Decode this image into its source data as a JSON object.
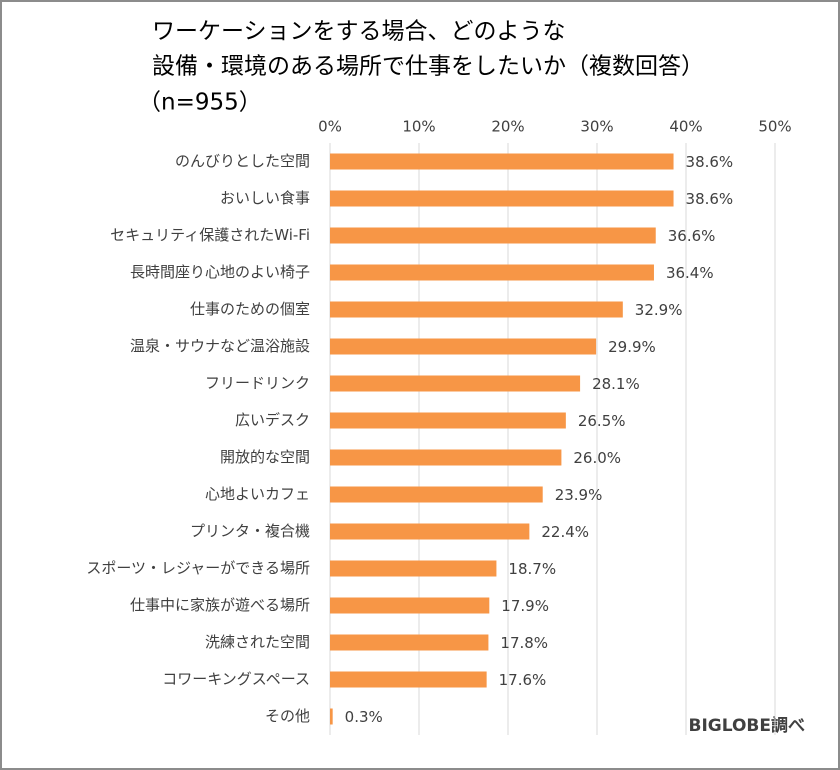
{
  "chart_data": {
    "type": "bar",
    "orientation": "horizontal",
    "title": [
      "ワーケーションをする場合、どのような",
      "設備・環境のある場所で仕事をしたいか（複数回答）"
    ],
    "subtitle": "（n=955）",
    "source": "BIGLOBE調べ",
    "categories": [
      "のんびりとした空間",
      "おいしい食事",
      "セキュリティ保護されたWi-Fi",
      "長時間座り心地のよい椅子",
      "仕事のための個室",
      "温泉・サウナなど温浴施設",
      "フリードリンク",
      "広いデスク",
      "開放的な空間",
      "心地よいカフェ",
      "プリンタ・複合機",
      "スポーツ・レジャーができる場所",
      "仕事中に家族が遊べる場所",
      "洗練された空間",
      "コワーキングスペース",
      "その他"
    ],
    "values": [
      38.6,
      38.6,
      36.6,
      36.4,
      32.9,
      29.9,
      28.1,
      26.5,
      26.0,
      23.9,
      22.4,
      18.7,
      17.9,
      17.8,
      17.6,
      0.3
    ],
    "value_labels": [
      "38.6%",
      "38.6%",
      "36.6%",
      "36.4%",
      "32.9%",
      "29.9%",
      "28.1%",
      "26.5%",
      "26.0%",
      "23.9%",
      "22.4%",
      "18.7%",
      "17.9%",
      "17.8%",
      "17.6%",
      "0.3%"
    ],
    "color": "#f79646",
    "xlim": [
      0,
      50
    ],
    "xticks": [
      {
        "value": 0,
        "label": "0%"
      },
      {
        "value": 10,
        "label": "10%"
      },
      {
        "value": 20,
        "label": "20%"
      },
      {
        "value": 30,
        "label": "30%"
      },
      {
        "value": 40,
        "label": "40%"
      },
      {
        "value": 50,
        "label": "50%"
      }
    ],
    "grid": true
  }
}
